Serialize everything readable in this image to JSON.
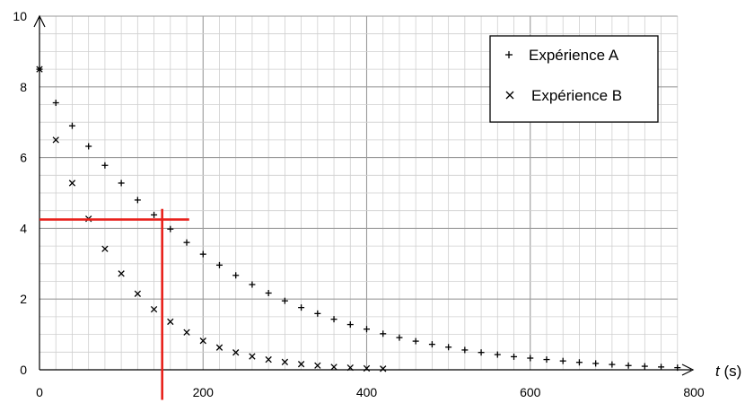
{
  "chart_data": {
    "type": "scatter",
    "xlabel_var": "t",
    "xlabel_unit": "(s)",
    "xlim": [
      0,
      800
    ],
    "ylim": [
      0,
      10
    ],
    "x_ticks": [
      "0",
      "200",
      "400",
      "600",
      "800"
    ],
    "y_ticks": [
      "0",
      "2",
      "4",
      "6",
      "8",
      "10"
    ],
    "grid": true,
    "legend_position": "top-right",
    "series": [
      {
        "name": "Expérience A",
        "marker": "+",
        "x": [
          0,
          20,
          40,
          60,
          80,
          100,
          120,
          140,
          160,
          180,
          200,
          220,
          240,
          260,
          280,
          300,
          320,
          340,
          360,
          380,
          400,
          420,
          440,
          460,
          480,
          500,
          520,
          540,
          560,
          580,
          600,
          620,
          640,
          660,
          680,
          700,
          720,
          740,
          760,
          780
        ],
        "y": [
          8.5,
          7.55,
          6.9,
          6.32,
          5.78,
          5.28,
          4.8,
          4.38,
          3.98,
          3.6,
          3.27,
          2.96,
          2.67,
          2.41,
          2.17,
          1.95,
          1.76,
          1.59,
          1.43,
          1.28,
          1.15,
          1.02,
          0.91,
          0.81,
          0.72,
          0.64,
          0.56,
          0.49,
          0.43,
          0.37,
          0.33,
          0.29,
          0.25,
          0.21,
          0.18,
          0.15,
          0.12,
          0.1,
          0.08,
          0.06
        ]
      },
      {
        "name": "Expérience B",
        "marker": "x",
        "x": [
          0,
          20,
          40,
          60,
          80,
          100,
          120,
          140,
          160,
          180,
          200,
          220,
          240,
          260,
          280,
          300,
          320,
          340,
          360,
          380,
          400,
          420
        ],
        "y": [
          8.5,
          6.5,
          5.28,
          4.27,
          3.42,
          2.72,
          2.15,
          1.71,
          1.36,
          1.06,
          0.82,
          0.63,
          0.49,
          0.38,
          0.29,
          0.22,
          0.16,
          0.12,
          0.08,
          0.06,
          0.04,
          0.03
        ]
      }
    ],
    "annotations": {
      "color": "#e8211b",
      "h_line_y": 4.25,
      "h_line_x_range": [
        0,
        183
      ],
      "v_line_x": 150,
      "v_line_y_range": [
        -0.85,
        4.55
      ]
    }
  }
}
